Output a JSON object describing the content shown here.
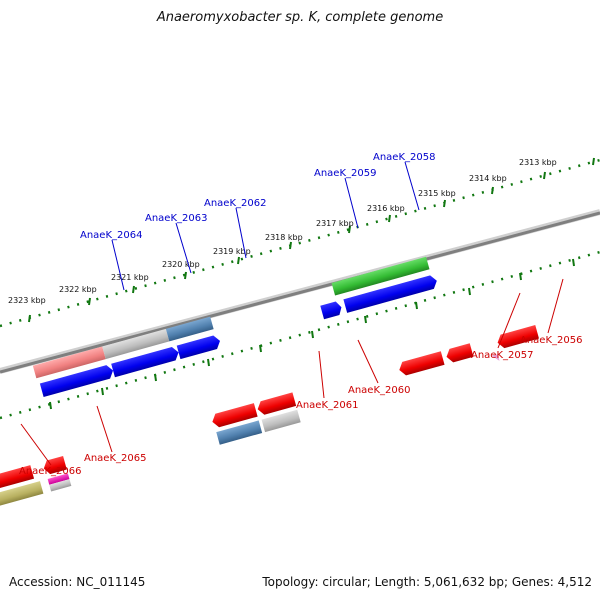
{
  "title": "Anaeromyxobacter sp. K, complete genome",
  "footer": {
    "accession": "Accession: NC_011145",
    "topology": "Topology: circular; Length: 5,061,632 bp; Genes: 4,512"
  },
  "colors": {
    "forward_label": "#0000cc",
    "reverse_label": "#cc0000",
    "tick": "#117711",
    "backbone": "#8a8a8a"
  },
  "scale_labels": [
    "2323 kbp",
    "2322 kbp",
    "2321 kbp",
    "2320 kbp",
    "2319 kbp",
    "2318 kbp",
    "2317 kbp",
    "2316 kbp",
    "2315 kbp",
    "2314 kbp",
    "2313 kbp"
  ],
  "gene_labels": {
    "forward": [
      "AnaeK_2064",
      "AnaeK_2063",
      "AnaeK_2062",
      "AnaeK_2059",
      "AnaeK_2058"
    ],
    "reverse": [
      "AnaeK_2066",
      "AnaeK_2065",
      "AnaeK_2061",
      "AnaeK_2060",
      "AnaeK_2057",
      "AnaeK_2056"
    ]
  }
}
